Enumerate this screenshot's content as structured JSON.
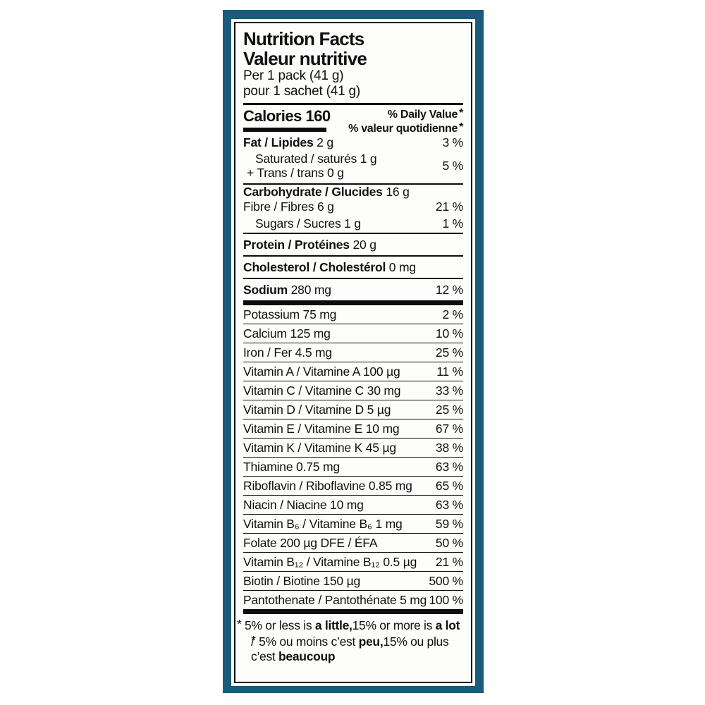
{
  "label": {
    "title_en": "Nutrition Facts",
    "title_fr": "Valeur nutritive",
    "serving_en": "Per 1 pack (41 g)",
    "serving_fr": "pour 1 sachet (41 g)",
    "calories": "Calories 160",
    "dv_header": {
      "en": "% Daily Value",
      "fr": "% valeur quotidienne",
      "star": "*"
    },
    "fat": {
      "bold": "Fat / Lipides",
      "rest": " 2 g",
      "dv": "3 %"
    },
    "saturated": {
      "line1": "Saturated / saturés 1 g",
      "line2": "+ Trans / trans 0 g",
      "dv": "5 %"
    },
    "carbohydrate": {
      "bold": "Carbohydrate / Glucides",
      "rest": " 16 g"
    },
    "fibre": {
      "text": "Fibre / Fibres 6 g",
      "dv": "21 %"
    },
    "sugars": {
      "text": "Sugars / Sucres 1 g",
      "dv": "1 %"
    },
    "protein": {
      "bold": "Protein / Protéines",
      "rest": " 20 g"
    },
    "cholesterol": {
      "bold": "Cholesterol / Cholestérol",
      "rest": " 0 mg"
    },
    "sodium": {
      "bold": "Sodium",
      "rest": " 280 mg",
      "dv": "12 %"
    },
    "micronutrients": [
      {
        "name": "Potassium 75 mg",
        "dv": "2 %"
      },
      {
        "name": "Calcium 125 mg",
        "dv": "10 %"
      },
      {
        "name": "Iron / Fer 4.5 mg",
        "dv": "25 %"
      },
      {
        "name": "Vitamin A / Vitamine A 100 µg",
        "dv": "11 %"
      },
      {
        "name": "Vitamin C / Vitamine C 30 mg",
        "dv": "33 %"
      },
      {
        "name": "Vitamin D / Vitamine D 5 µg",
        "dv": "25 %"
      },
      {
        "name": "Vitamin E / Vitamine E 10 mg",
        "dv": "67 %"
      },
      {
        "name": "Vitamin K / Vitamine K 45 µg",
        "dv": "38 %"
      },
      {
        "name": "Thiamine 0.75 mg",
        "dv": "63 %"
      },
      {
        "name": "Riboflavin / Riboflavine 0.85 mg",
        "dv": "65 %"
      },
      {
        "name": "Niacin / Niacine 10 mg",
        "dv": "63 %"
      },
      {
        "name": "Vitamin B₆ / Vitamine B₆ 1 mg",
        "dv": "59 %"
      },
      {
        "name": "Folate 200 µg DFE / ÉFA",
        "dv": "50 %"
      },
      {
        "name": "Vitamin B₁₂ / Vitamine B₁₂ 0.5 µg",
        "dv": "21 %"
      },
      {
        "name": "Biotin / Biotine 150 µg",
        "dv": "500 %"
      },
      {
        "name": "Pantothenate / Pantothénate 5 mg",
        "dv": "100 %"
      }
    ],
    "footnote": {
      "star1": "*",
      "s1": "5% or less is ",
      "b1": "a little,",
      "s2": "15% or more is ",
      "b2": "a lot",
      "s3": " / ",
      "star2": "*",
      "s4": "5% ou moins c’est ",
      "b3": "peu,",
      "s5": "15% ou plus c’est ",
      "b4": "beaucoup"
    },
    "colors": {
      "frame_teal": "#1a5a7a",
      "panel_background": "#fdfdfb",
      "ink": "#0d0d0d"
    }
  }
}
